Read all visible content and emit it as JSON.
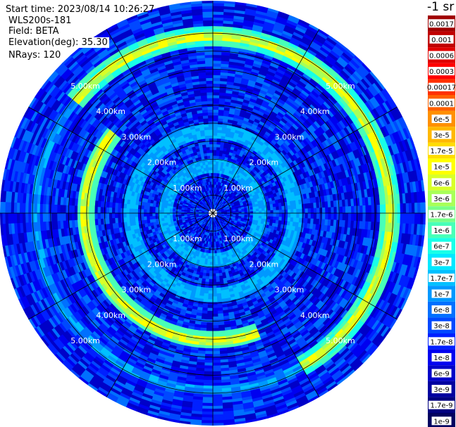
{
  "info": {
    "start_time": "Start time: 2023/08/14 10:26:27",
    "instrument": "WLS200s-181",
    "field": "Field: BETA",
    "elevation": "Elevation(deg): 35.30",
    "nrays": "NRays: 120"
  },
  "colorbar": {
    "title": "-1 sr",
    "labels": [
      "0.0017",
      "0.001",
      "0.0006",
      "0.0003",
      "0.00017",
      "0.0001",
      "6e-5",
      "3e-5",
      "1.7e-5",
      "1e-5",
      "6e-6",
      "3e-6",
      "1.7e-6",
      "1e-6",
      "6e-7",
      "3e-7",
      "1.7e-7",
      "1e-7",
      "6e-8",
      "3e-8",
      "1.7e-8",
      "1e-8",
      "6e-9",
      "3e-9",
      "1.7e-9",
      "1e-9"
    ],
    "colors": [
      "#a00000",
      "#c00000",
      "#e00000",
      "#ff0000",
      "#ff3000",
      "#ff6000",
      "#ff9000",
      "#ffb800",
      "#ffdc00",
      "#ffff00",
      "#d8ff28",
      "#a8ff58",
      "#78ff88",
      "#48ffb8",
      "#18ffe8",
      "#00e8ff",
      "#00c0ff",
      "#0098ff",
      "#0070ff",
      "#0048ff",
      "#0020ff",
      "#0000f0",
      "#0000c8",
      "#0000a0",
      "#000080",
      "#000060"
    ]
  },
  "chart_data": {
    "type": "heatmap",
    "projection": "polar PPI",
    "range_labels_km": [
      "1.00km",
      "2.00km",
      "3.00km",
      "4.00km",
      "5.00km"
    ],
    "range_rings_km": [
      0.5,
      1.0,
      1.5,
      2.0,
      2.5,
      3.0,
      3.5,
      4.0,
      4.5,
      5.0
    ],
    "max_range_km": 5.9,
    "spoke_angles_deg": [
      0,
      30,
      60,
      90,
      120,
      150,
      180,
      210,
      240,
      270,
      300,
      330
    ],
    "nrays": 120,
    "background_level": "1.7e-8",
    "features": [
      {
        "name": "inner ring",
        "radius_km": 1.3,
        "level": "1.7e-7"
      },
      {
        "name": "middle ring",
        "radius_km": 2.3,
        "level": "1.7e-7"
      },
      {
        "name": "aerosol layer ring",
        "radius_km": 4.9,
        "level": "1e-5",
        "direction": "east/north",
        "fainter_direction": "west",
        "level_faint": "1.7e-7"
      },
      {
        "name": "aerosol layer ring south",
        "radius_km": 3.55,
        "level": "1e-5"
      }
    ]
  }
}
